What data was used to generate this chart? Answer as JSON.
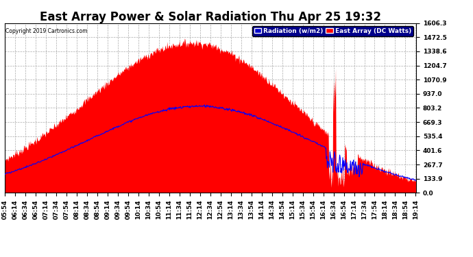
{
  "title": "East Array Power & Solar Radiation Thu Apr 25 19:32",
  "copyright": "Copyright 2019 Cartronics.com",
  "y_ticks": [
    0.0,
    133.9,
    267.7,
    401.6,
    535.4,
    669.3,
    803.2,
    937.0,
    1070.9,
    1204.7,
    1338.6,
    1472.5,
    1606.3
  ],
  "y_max": 1606.3,
  "y_min": 0.0,
  "legend_labels": [
    "Radiation (w/m2)",
    "East Array (DC Watts)"
  ],
  "background_color": "#ffffff",
  "plot_background": "#ffffff",
  "grid_color": "#aaaaaa",
  "title_fontsize": 12,
  "tick_fontsize": 6.5,
  "x_start_min": 354,
  "x_end_min": 1155,
  "label_step_min": 20,
  "data_step_min": 1
}
